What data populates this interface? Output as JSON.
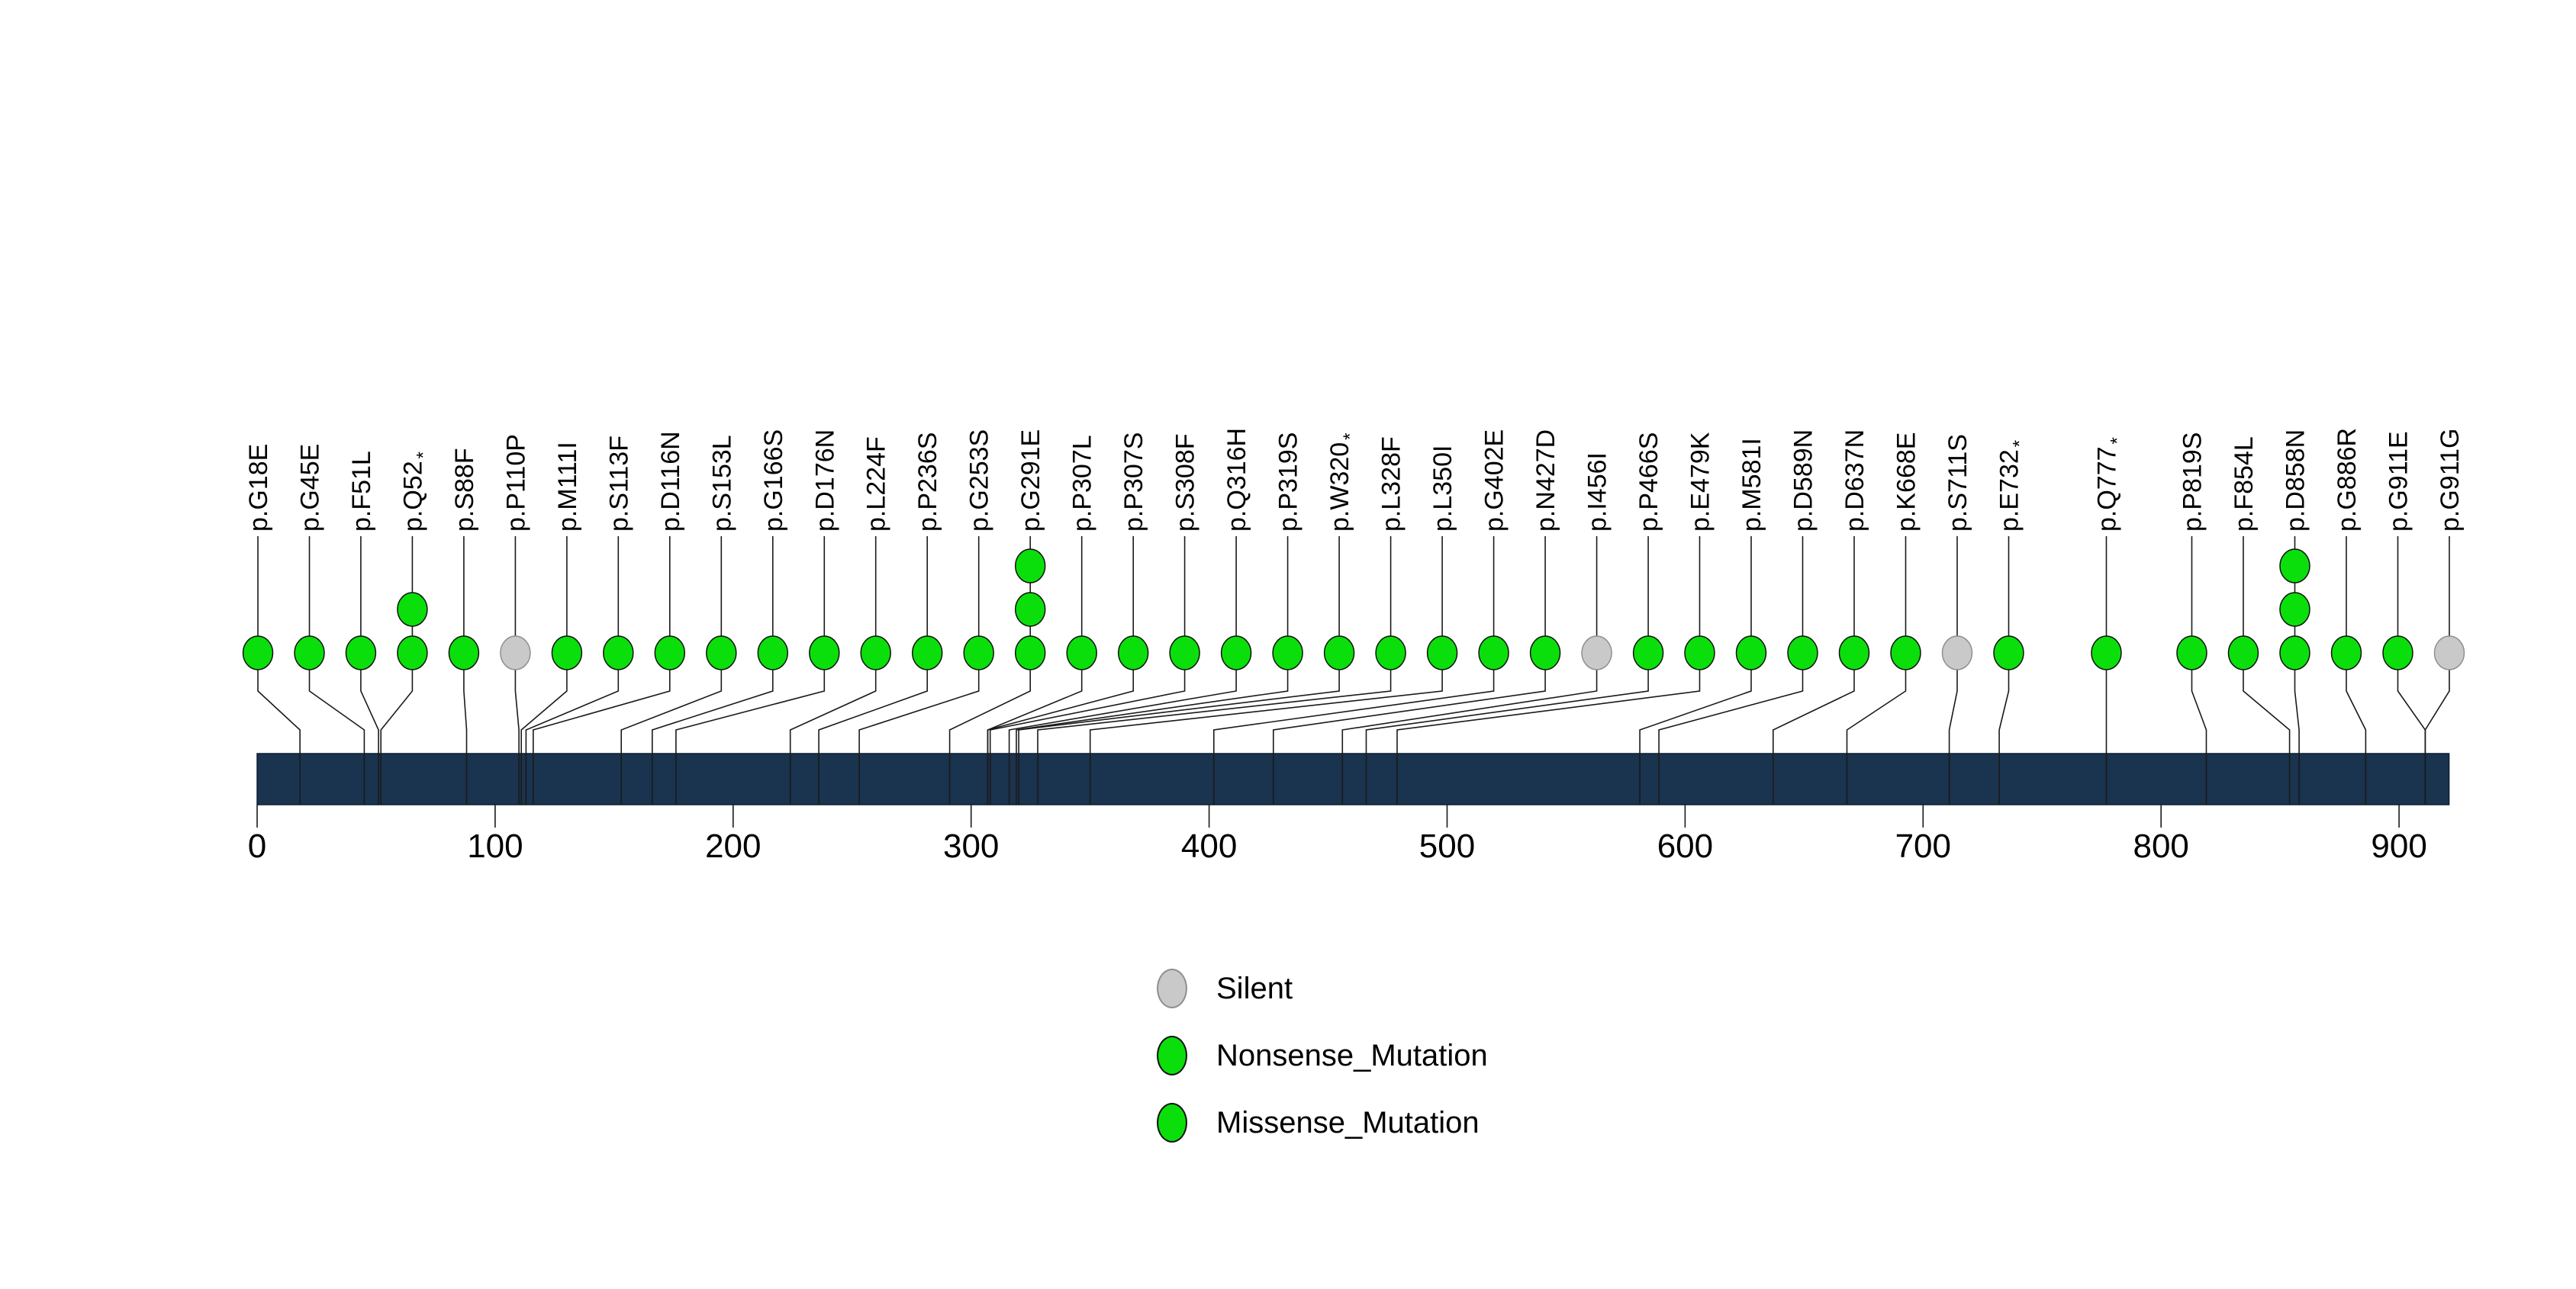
{
  "chart_data": {
    "type": "lollipop",
    "title": "",
    "axis": {
      "tick_values": [
        0,
        100,
        200,
        300,
        400,
        500,
        600,
        700,
        800,
        900
      ],
      "domain_min": 0,
      "domain_max": 921,
      "xlabel": ""
    },
    "colors": {
      "protein_bar": "#1a334e",
      "protein_bar_border": "#0d1f33",
      "line": "#1a1a1a",
      "classes": {
        "Silent": {
          "fill": "#c9c9c9",
          "stroke": "#8f8f8f"
        },
        "Nonsense_Mutation": {
          "fill": "#0bdf0b",
          "stroke": "#111111"
        },
        "Missense_Mutation": {
          "fill": "#0bdf0b",
          "stroke": "#111111"
        }
      }
    },
    "mutations": [
      {
        "label": "p.G18E",
        "pos": 18,
        "count": 1,
        "class": "Missense_Mutation"
      },
      {
        "label": "p.G45E",
        "pos": 45,
        "count": 1,
        "class": "Missense_Mutation"
      },
      {
        "label": "p.F51L",
        "pos": 51,
        "count": 1,
        "class": "Missense_Mutation"
      },
      {
        "label": "p.Q52*",
        "pos": 52,
        "count": 2,
        "class": "Nonsense_Mutation"
      },
      {
        "label": "p.S88F",
        "pos": 88,
        "count": 1,
        "class": "Missense_Mutation"
      },
      {
        "label": "p.P110P",
        "pos": 110,
        "count": 1,
        "class": "Silent"
      },
      {
        "label": "p.M111I",
        "pos": 111,
        "count": 1,
        "class": "Missense_Mutation"
      },
      {
        "label": "p.S113F",
        "pos": 113,
        "count": 1,
        "class": "Missense_Mutation"
      },
      {
        "label": "p.D116N",
        "pos": 116,
        "count": 1,
        "class": "Missense_Mutation"
      },
      {
        "label": "p.S153L",
        "pos": 153,
        "count": 1,
        "class": "Missense_Mutation"
      },
      {
        "label": "p.G166S",
        "pos": 166,
        "count": 1,
        "class": "Missense_Mutation"
      },
      {
        "label": "p.D176N",
        "pos": 176,
        "count": 1,
        "class": "Missense_Mutation"
      },
      {
        "label": "p.L224F",
        "pos": 224,
        "count": 1,
        "class": "Missense_Mutation"
      },
      {
        "label": "p.P236S",
        "pos": 236,
        "count": 1,
        "class": "Missense_Mutation"
      },
      {
        "label": "p.G253S",
        "pos": 253,
        "count": 1,
        "class": "Missense_Mutation"
      },
      {
        "label": "p.G291E",
        "pos": 291,
        "count": 3,
        "class": "Missense_Mutation"
      },
      {
        "label": "p.P307L",
        "pos": 307,
        "count": 1,
        "class": "Missense_Mutation"
      },
      {
        "label": "p.P307S",
        "pos": 307,
        "count": 1,
        "class": "Missense_Mutation"
      },
      {
        "label": "p.S308F",
        "pos": 308,
        "count": 1,
        "class": "Missense_Mutation"
      },
      {
        "label": "p.Q316H",
        "pos": 316,
        "count": 1,
        "class": "Missense_Mutation"
      },
      {
        "label": "p.P319S",
        "pos": 319,
        "count": 1,
        "class": "Missense_Mutation"
      },
      {
        "label": "p.W320*",
        "pos": 320,
        "count": 1,
        "class": "Nonsense_Mutation"
      },
      {
        "label": "p.L328F",
        "pos": 328,
        "count": 1,
        "class": "Missense_Mutation"
      },
      {
        "label": "p.L350I",
        "pos": 350,
        "count": 1,
        "class": "Missense_Mutation"
      },
      {
        "label": "p.G402E",
        "pos": 402,
        "count": 1,
        "class": "Missense_Mutation"
      },
      {
        "label": "p.N427D",
        "pos": 427,
        "count": 1,
        "class": "Missense_Mutation"
      },
      {
        "label": "p.I456I",
        "pos": 456,
        "count": 1,
        "class": "Silent"
      },
      {
        "label": "p.P466S",
        "pos": 466,
        "count": 1,
        "class": "Missense_Mutation"
      },
      {
        "label": "p.E479K",
        "pos": 479,
        "count": 1,
        "class": "Missense_Mutation"
      },
      {
        "label": "p.M581I",
        "pos": 581,
        "count": 1,
        "class": "Missense_Mutation"
      },
      {
        "label": "p.D589N",
        "pos": 589,
        "count": 1,
        "class": "Missense_Mutation"
      },
      {
        "label": "p.D637N",
        "pos": 637,
        "count": 1,
        "class": "Missense_Mutation"
      },
      {
        "label": "p.K668E",
        "pos": 668,
        "count": 1,
        "class": "Missense_Mutation"
      },
      {
        "label": "p.S711S",
        "pos": 711,
        "count": 1,
        "class": "Silent"
      },
      {
        "label": "p.E732*",
        "pos": 732,
        "count": 1,
        "class": "Nonsense_Mutation"
      },
      {
        "label": "p.Q777*",
        "pos": 777,
        "count": 1,
        "class": "Nonsense_Mutation"
      },
      {
        "label": "p.P819S",
        "pos": 819,
        "count": 1,
        "class": "Missense_Mutation"
      },
      {
        "label": "p.F854L",
        "pos": 854,
        "count": 1,
        "class": "Missense_Mutation"
      },
      {
        "label": "p.D858N",
        "pos": 858,
        "count": 3,
        "class": "Missense_Mutation"
      },
      {
        "label": "p.G886R",
        "pos": 886,
        "count": 1,
        "class": "Missense_Mutation"
      },
      {
        "label": "p.G911E",
        "pos": 911,
        "count": 1,
        "class": "Missense_Mutation"
      },
      {
        "label": "p.G911G",
        "pos": 911,
        "count": 1,
        "class": "Silent"
      }
    ],
    "legend": {
      "items": [
        {
          "label": "Silent",
          "color": "#c9c9c9",
          "border": "#8f8f8f"
        },
        {
          "label": "Nonsense_Mutation",
          "color": "#0bdf0b",
          "border": "#111111"
        },
        {
          "label": "Missense_Mutation",
          "color": "#0bdf0b",
          "border": "#111111"
        }
      ]
    }
  }
}
